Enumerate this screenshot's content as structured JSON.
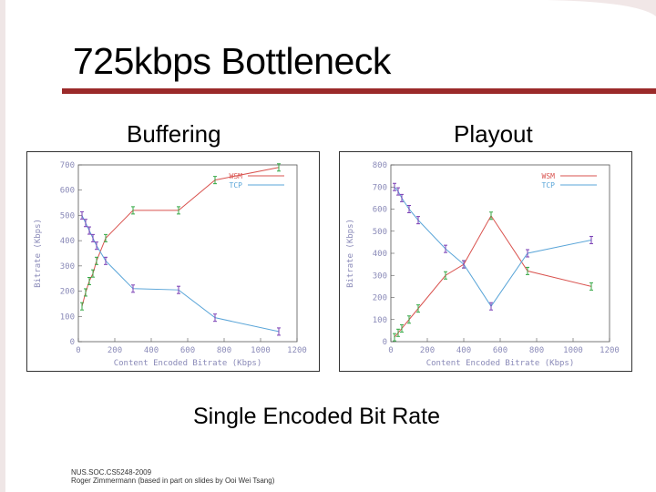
{
  "slide": {
    "title": "725kbps Bottleneck",
    "subtitle_left": "Buffering",
    "subtitle_right": "Playout",
    "caption": "Single Encoded Bit Rate",
    "footer_line1": "NUS.SOC.CS5248-2009",
    "footer_line2": "Roger Zimmermann (based in part on slides by Ooi Wei Tsang)",
    "accent_color": "#9b2a2a"
  },
  "chart_data": [
    {
      "type": "line",
      "name": "buffering",
      "title": "",
      "xlabel": "Content Encoded Bitrate (Kbps)",
      "ylabel": "Bitrate (Kbps)",
      "xlim": [
        0,
        1200
      ],
      "ylim": [
        0,
        700
      ],
      "xticks": [
        0,
        200,
        400,
        600,
        800,
        1000,
        1200
      ],
      "yticks": [
        0,
        100,
        200,
        300,
        400,
        500,
        600,
        700
      ],
      "legend_position": "top-right",
      "x": [
        20,
        40,
        60,
        80,
        100,
        150,
        300,
        550,
        750,
        1100
      ],
      "series": [
        {
          "name": "WSM",
          "color": "#d9534f",
          "values": [
            140,
            195,
            240,
            270,
            320,
            410,
            520,
            520,
            640,
            690
          ]
        },
        {
          "name": "TCP",
          "color": "#5aa5d8",
          "values": [
            500,
            470,
            440,
            410,
            380,
            320,
            210,
            205,
            95,
            40
          ]
        }
      ]
    },
    {
      "type": "line",
      "name": "playout",
      "title": "",
      "xlabel": "Content Encoded Bitrate (Kbps)",
      "ylabel": "Bitrate (Kbps)",
      "xlim": [
        0,
        1200
      ],
      "ylim": [
        0,
        800
      ],
      "xticks": [
        0,
        200,
        400,
        600,
        800,
        1000,
        1200
      ],
      "yticks": [
        0,
        100,
        200,
        300,
        400,
        500,
        600,
        700,
        800
      ],
      "legend_position": "top-right",
      "x": [
        20,
        40,
        60,
        100,
        150,
        300,
        400,
        550,
        750,
        1100
      ],
      "series": [
        {
          "name": "WSM",
          "color": "#d9534f",
          "values": [
            20,
            40,
            60,
            100,
            150,
            300,
            350,
            570,
            320,
            250
          ]
        },
        {
          "name": "TCP",
          "color": "#5aa5d8",
          "values": [
            700,
            680,
            650,
            600,
            550,
            420,
            350,
            160,
            400,
            460
          ]
        }
      ]
    }
  ]
}
